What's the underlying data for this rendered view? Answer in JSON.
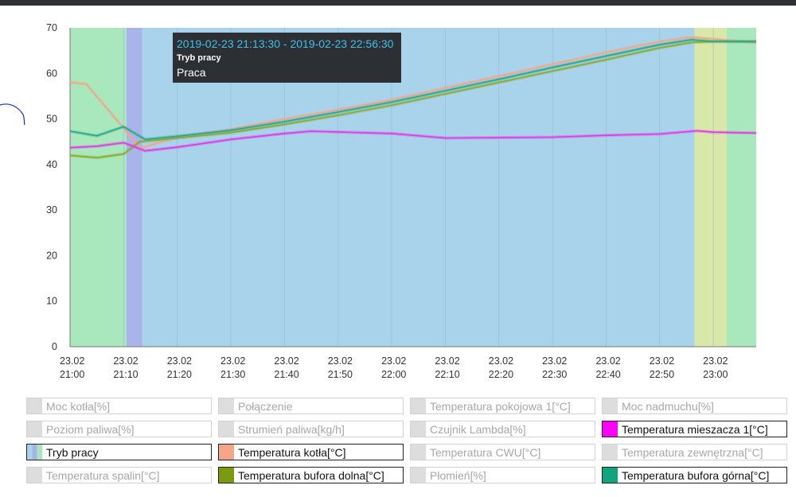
{
  "chart_data": {
    "type": "line",
    "xlabel": "",
    "ylabel": "",
    "ylim": [
      0,
      70
    ],
    "y_ticks": [
      0,
      10,
      20,
      30,
      40,
      50,
      60,
      70
    ],
    "x_range": [
      "21:00",
      "23:08"
    ],
    "x_ticks": [
      {
        "t": "21:00",
        "l1": "23.02",
        "l2": "21:00"
      },
      {
        "t": "21:10",
        "l1": "23.02",
        "l2": "21:10"
      },
      {
        "t": "21:20",
        "l1": "23.02",
        "l2": "21:20"
      },
      {
        "t": "21:30",
        "l1": "23.02",
        "l2": "21:30"
      },
      {
        "t": "21:40",
        "l1": "23.02",
        "l2": "21:40"
      },
      {
        "t": "21:50",
        "l1": "23.02",
        "l2": "21:50"
      },
      {
        "t": "22:00",
        "l1": "23.02",
        "l2": "22:00"
      },
      {
        "t": "22:10",
        "l1": "23.02",
        "l2": "22:10"
      },
      {
        "t": "22:20",
        "l1": "23.02",
        "l2": "22:20"
      },
      {
        "t": "22:30",
        "l1": "23.02",
        "l2": "22:30"
      },
      {
        "t": "22:40",
        "l1": "23.02",
        "l2": "22:40"
      },
      {
        "t": "22:50",
        "l1": "23.02",
        "l2": "22:50"
      },
      {
        "t": "23:00",
        "l1": "23.02",
        "l2": "23:00"
      }
    ],
    "grid": "vertical",
    "bands": [
      {
        "start": "21:00",
        "end": "21:10:30",
        "color": "#a9e8bd"
      },
      {
        "start": "21:10:30",
        "end": "21:13:30",
        "color": "#a9b4ea"
      },
      {
        "start": "21:13:30",
        "end": "22:56:30",
        "color": "#a9d3ea"
      },
      {
        "start": "22:56:30",
        "end": "23:02:30",
        "color": "#d9e8a9"
      },
      {
        "start": "23:02:30",
        "end": "23:08",
        "color": "#a9e8bd"
      }
    ],
    "series": [
      {
        "name": "Temperatura kotła[°C]",
        "color": "#f4a58a",
        "points": [
          [
            "21:00",
            58
          ],
          [
            "21:03",
            57.7
          ],
          [
            "21:10",
            48
          ],
          [
            "21:13",
            43.5
          ],
          [
            "21:20",
            46
          ],
          [
            "21:30",
            47.7
          ],
          [
            "21:40",
            50
          ],
          [
            "21:50",
            52
          ],
          [
            "22:00",
            54.2
          ],
          [
            "22:10",
            56.8
          ],
          [
            "22:20",
            59.4
          ],
          [
            "22:30",
            62
          ],
          [
            "22:40",
            64.6
          ],
          [
            "22:50",
            67
          ],
          [
            "22:56",
            68
          ],
          [
            "23:08",
            66.7
          ]
        ]
      },
      {
        "name": "Temperatura bufora dolna[°C]",
        "color": "#8aab2e",
        "points": [
          [
            "21:00",
            42
          ],
          [
            "21:05",
            41.5
          ],
          [
            "21:10",
            42.3
          ],
          [
            "21:13",
            45
          ],
          [
            "21:20",
            45.8
          ],
          [
            "21:30",
            47
          ],
          [
            "21:40",
            48.8
          ],
          [
            "21:50",
            50.8
          ],
          [
            "22:00",
            53
          ],
          [
            "22:10",
            55.5
          ],
          [
            "22:20",
            58
          ],
          [
            "22:30",
            60.5
          ],
          [
            "22:40",
            63
          ],
          [
            "22:50",
            65.6
          ],
          [
            "22:56",
            66.8
          ],
          [
            "23:00",
            67
          ],
          [
            "23:08",
            67
          ]
        ]
      },
      {
        "name": "Temperatura bufora górna[°C]",
        "color": "#2ba78a",
        "points": [
          [
            "21:00",
            47.3
          ],
          [
            "21:05",
            46.3
          ],
          [
            "21:10",
            48.3
          ],
          [
            "21:14",
            45.5
          ],
          [
            "21:20",
            46.2
          ],
          [
            "21:30",
            47.5
          ],
          [
            "21:40",
            49.4
          ],
          [
            "21:50",
            51.5
          ],
          [
            "22:00",
            53.7
          ],
          [
            "22:10",
            56.2
          ],
          [
            "22:20",
            58.7
          ],
          [
            "22:30",
            61.3
          ],
          [
            "22:40",
            63.8
          ],
          [
            "22:50",
            66.3
          ],
          [
            "22:56",
            67.4
          ],
          [
            "23:00",
            67
          ],
          [
            "23:08",
            67
          ]
        ]
      },
      {
        "name": "Temperatura mieszacza 1[°C]",
        "color": "#e13ae6",
        "points": [
          [
            "21:00",
            43.7
          ],
          [
            "21:05",
            44
          ],
          [
            "21:10",
            44.8
          ],
          [
            "21:14",
            43
          ],
          [
            "21:20",
            43.8
          ],
          [
            "21:30",
            45.5
          ],
          [
            "21:40",
            46.8
          ],
          [
            "21:45",
            47.3
          ],
          [
            "22:00",
            46.8
          ],
          [
            "22:10",
            45.8
          ],
          [
            "22:20",
            45.9
          ],
          [
            "22:30",
            46
          ],
          [
            "22:40",
            46.4
          ],
          [
            "22:50",
            46.7
          ],
          [
            "22:57",
            47.4
          ],
          [
            "23:00",
            47.1
          ],
          [
            "23:08",
            46.9
          ]
        ]
      }
    ]
  },
  "tooltip": {
    "title": "2019-02-23 21:13:30 - 2019-02-23 22:56:30",
    "label": "Tryb pracy",
    "value": "Praca"
  },
  "legend": [
    {
      "label": "Moc kotła[%]",
      "active": false,
      "swatch": [
        "#dddddd"
      ]
    },
    {
      "label": "Połączenie",
      "active": false,
      "swatch": [
        "#dddddd"
      ]
    },
    {
      "label": "Temperatura pokojowa 1[°C]",
      "active": false,
      "swatch": [
        "#dddddd"
      ]
    },
    {
      "label": "Moc nadmuchu[%]",
      "active": false,
      "swatch": [
        "#dddddd"
      ]
    },
    {
      "label": "Poziom paliwa[%]",
      "active": false,
      "swatch": [
        "#dddddd"
      ]
    },
    {
      "label": "Strumień paliwa[kg/h]",
      "active": false,
      "swatch": [
        "#dddddd"
      ]
    },
    {
      "label": "Czujnik Lambda[%]",
      "active": false,
      "swatch": [
        "#dddddd"
      ]
    },
    {
      "label": "Temperatura mieszacza 1[°C]",
      "active": true,
      "swatch": [
        "#ff00ff"
      ]
    },
    {
      "label": "Tryb pracy",
      "active": true,
      "swatch": [
        "#a9d3ea",
        "#a9b4ea",
        "#a9e8bd"
      ]
    },
    {
      "label": "Temperatura kotła[°C]",
      "active": true,
      "swatch": [
        "#f4a58a"
      ]
    },
    {
      "label": "Temperatura CWU[°C]",
      "active": false,
      "swatch": [
        "#dddddd"
      ]
    },
    {
      "label": "Temperatura zewnętrzna[°C]",
      "active": false,
      "swatch": [
        "#dddddd"
      ]
    },
    {
      "label": "Temperatura spalin[°C]",
      "active": false,
      "swatch": [
        "#dddddd"
      ]
    },
    {
      "label": "Temperatura bufora dolna[°C]",
      "active": true,
      "swatch": [
        "#7a9a10"
      ]
    },
    {
      "label": "Płomień[%]",
      "active": false,
      "swatch": [
        "#dddddd"
      ]
    },
    {
      "label": "Temperatura bufora górna[°C]",
      "active": true,
      "swatch": [
        "#11a57e"
      ]
    }
  ]
}
